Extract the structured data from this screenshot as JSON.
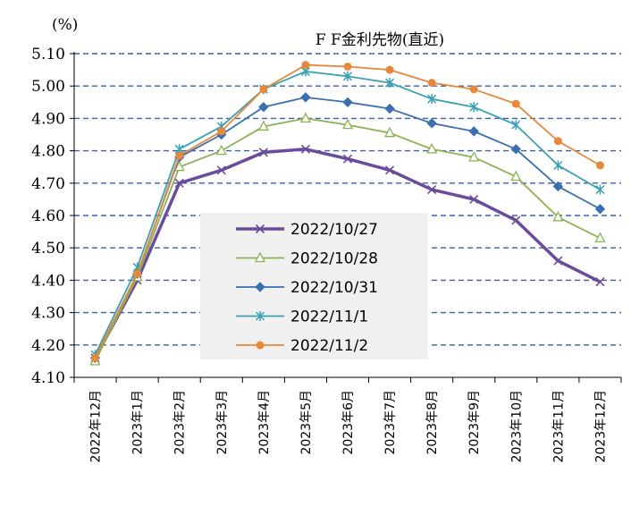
{
  "chart_data": {
    "type": "line",
    "title": "F F金利先物(直近)",
    "ylabel": "(%)",
    "xlabel": "",
    "ylim": [
      4.1,
      5.1
    ],
    "yticks": [
      "4.10",
      "4.20",
      "4.30",
      "4.40",
      "4.50",
      "4.60",
      "4.70",
      "4.80",
      "4.90",
      "5.00",
      "5.10"
    ],
    "categories": [
      "2022年12月",
      "2023年1月",
      "2023年2月",
      "2023年3月",
      "2023年4月",
      "2023年5月",
      "2023年6月",
      "2023年7月",
      "2023年8月",
      "2023年9月",
      "2023年10月",
      "2023年11月",
      "2023年12月"
    ],
    "series": [
      {
        "name": "2022/10/27",
        "color": "#6a4c9c",
        "marker": "x",
        "values": [
          4.16,
          4.4,
          4.7,
          4.74,
          4.795,
          4.805,
          4.775,
          4.74,
          4.68,
          4.65,
          4.585,
          4.46,
          4.395
        ]
      },
      {
        "name": "2022/10/28",
        "color": "#8db254",
        "marker": "triangle",
        "values": [
          4.15,
          4.41,
          4.75,
          4.8,
          4.875,
          4.9,
          4.88,
          4.855,
          4.805,
          4.78,
          4.72,
          4.595,
          4.53
        ]
      },
      {
        "name": "2022/10/31",
        "color": "#3a6fb0",
        "marker": "diamond",
        "values": [
          4.16,
          4.42,
          4.78,
          4.85,
          4.935,
          4.965,
          4.95,
          4.93,
          4.885,
          4.86,
          4.805,
          4.69,
          4.62
        ]
      },
      {
        "name": "2022/11/1",
        "color": "#3aa0b4",
        "marker": "asterisk",
        "values": [
          4.17,
          4.44,
          4.805,
          4.875,
          4.99,
          5.045,
          5.03,
          5.01,
          4.96,
          4.935,
          4.88,
          4.755,
          4.68
        ]
      },
      {
        "name": "2022/11/2",
        "color": "#e8883a",
        "marker": "circle",
        "values": [
          4.16,
          4.42,
          4.785,
          4.86,
          4.99,
          5.065,
          5.06,
          5.05,
          5.01,
          4.99,
          4.945,
          4.83,
          4.755
        ]
      }
    ],
    "legend_position": "center-left",
    "grid": true
  }
}
